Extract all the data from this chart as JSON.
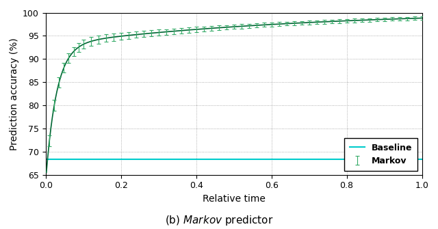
{
  "xlabel": "Relative time",
  "ylabel": "Prediction accuracy (%)",
  "ylim": [
    65,
    100
  ],
  "xlim": [
    0.0,
    1.0
  ],
  "yticks": [
    65,
    70,
    75,
    80,
    85,
    90,
    95,
    100
  ],
  "xticks": [
    0.0,
    0.2,
    0.4,
    0.6,
    0.8,
    1.0
  ],
  "baseline_value": 68.3,
  "baseline_color": "#00CCCC",
  "markov_line_color": "#006633",
  "markov_err_color": "#33AA66",
  "background_color": "#ffffff",
  "grid_color": "#999999",
  "legend_labels": [
    "Baseline",
    "Markov"
  ],
  "curve_A": 100.5,
  "curve_B1": 29.5,
  "curve_C1": 35.0,
  "curve_B2": 7.5,
  "curve_C2": 1.5
}
